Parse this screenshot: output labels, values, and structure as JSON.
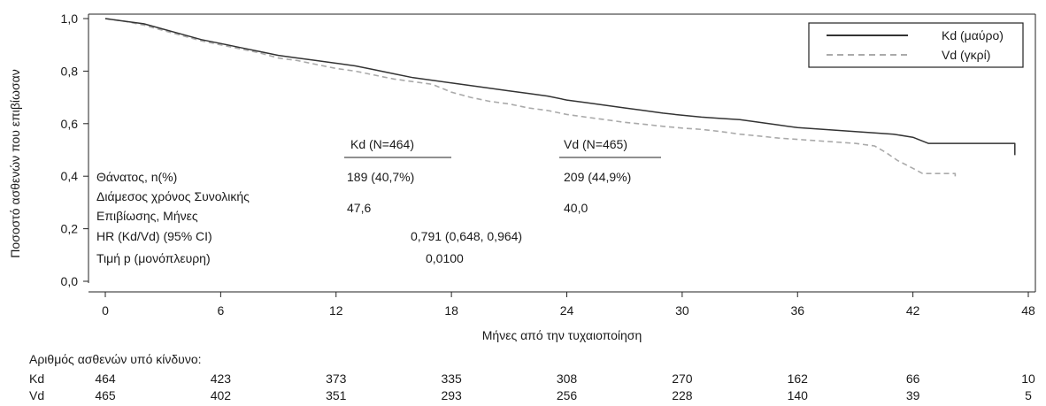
{
  "chart_data": {
    "type": "line",
    "subtype": "kaplan-meier",
    "title": "",
    "xlabel": "Μήνες από την τυχαιοποίηση",
    "ylabel": "Ποσοστό ασθενών που επιβίωσαν",
    "xlim": [
      0,
      48
    ],
    "ylim": [
      0,
      1.0
    ],
    "x_ticks": [
      0,
      6,
      12,
      18,
      24,
      30,
      36,
      42,
      48
    ],
    "y_ticks": [
      "0,0",
      "0,2",
      "0,4",
      "0,6",
      "0,8",
      "1,0"
    ],
    "grid": false,
    "legend": {
      "position": "top-right",
      "entries": [
        {
          "label": "Kd (μαύρο)",
          "color": "#333333",
          "style": "solid"
        },
        {
          "label": "Vd (γκρί)",
          "color": "#aaaaaa",
          "style": "dashed"
        }
      ]
    },
    "series": [
      {
        "name": "Kd (μαύρο)",
        "color": "#333333",
        "dash": "solid",
        "points": [
          [
            0,
            1.0
          ],
          [
            1,
            0.99
          ],
          [
            2,
            0.98
          ],
          [
            3,
            0.96
          ],
          [
            4,
            0.94
          ],
          [
            5,
            0.92
          ],
          [
            6,
            0.905
          ],
          [
            7,
            0.89
          ],
          [
            8,
            0.875
          ],
          [
            9,
            0.86
          ],
          [
            10,
            0.85
          ],
          [
            11,
            0.84
          ],
          [
            12,
            0.83
          ],
          [
            13,
            0.82
          ],
          [
            14,
            0.805
          ],
          [
            15,
            0.79
          ],
          [
            16,
            0.775
          ],
          [
            17,
            0.765
          ],
          [
            18,
            0.755
          ],
          [
            19,
            0.745
          ],
          [
            20,
            0.735
          ],
          [
            21,
            0.725
          ],
          [
            22,
            0.715
          ],
          [
            23,
            0.705
          ],
          [
            24,
            0.69
          ],
          [
            25,
            0.68
          ],
          [
            26,
            0.67
          ],
          [
            27,
            0.66
          ],
          [
            28,
            0.65
          ],
          [
            29,
            0.64
          ],
          [
            30,
            0.632
          ],
          [
            31,
            0.625
          ],
          [
            32,
            0.62
          ],
          [
            33,
            0.615
          ],
          [
            34,
            0.605
          ],
          [
            35,
            0.595
          ],
          [
            36,
            0.585
          ],
          [
            37,
            0.58
          ],
          [
            38,
            0.575
          ],
          [
            39,
            0.57
          ],
          [
            40,
            0.565
          ],
          [
            41,
            0.56
          ],
          [
            42,
            0.548
          ],
          [
            42.8,
            0.525
          ],
          [
            47.3,
            0.525
          ],
          [
            47.3,
            0.48
          ]
        ]
      },
      {
        "name": "Vd (γκρί)",
        "color": "#aaaaaa",
        "dash": "dashed",
        "points": [
          [
            0,
            1.0
          ],
          [
            1,
            0.99
          ],
          [
            2,
            0.975
          ],
          [
            3,
            0.955
          ],
          [
            4,
            0.935
          ],
          [
            5,
            0.915
          ],
          [
            6,
            0.9
          ],
          [
            7,
            0.885
          ],
          [
            8,
            0.87
          ],
          [
            9,
            0.85
          ],
          [
            10,
            0.84
          ],
          [
            11,
            0.825
          ],
          [
            12,
            0.81
          ],
          [
            13,
            0.8
          ],
          [
            14,
            0.785
          ],
          [
            15,
            0.77
          ],
          [
            16,
            0.76
          ],
          [
            17,
            0.75
          ],
          [
            18,
            0.72
          ],
          [
            19,
            0.7
          ],
          [
            20,
            0.685
          ],
          [
            21,
            0.675
          ],
          [
            22,
            0.66
          ],
          [
            23,
            0.65
          ],
          [
            24,
            0.635
          ],
          [
            25,
            0.625
          ],
          [
            26,
            0.615
          ],
          [
            27,
            0.605
          ],
          [
            28,
            0.598
          ],
          [
            29,
            0.59
          ],
          [
            30,
            0.583
          ],
          [
            31,
            0.578
          ],
          [
            32,
            0.57
          ],
          [
            33,
            0.56
          ],
          [
            34,
            0.553
          ],
          [
            35,
            0.545
          ],
          [
            36,
            0.54
          ],
          [
            37,
            0.535
          ],
          [
            38,
            0.53
          ],
          [
            39,
            0.525
          ],
          [
            40,
            0.515
          ],
          [
            40.6,
            0.49
          ],
          [
            41.2,
            0.46
          ],
          [
            42,
            0.43
          ],
          [
            42.5,
            0.41
          ],
          [
            44.2,
            0.41
          ],
          [
            44.2,
            0.39
          ]
        ]
      }
    ],
    "summary_table": {
      "headers": [
        "Kd (N=464)",
        "Vd (N=465)"
      ],
      "rows": [
        {
          "label": "Θάνατος, n(%)",
          "kd": "189 (40,7%)",
          "vd": "209 (44,9%)"
        },
        {
          "label_line1": "Διάμεσος χρόνος Συνολικής",
          "label_line2": "Επιβίωσης, Μήνες",
          "kd": "47,6",
          "vd": "40,0"
        },
        {
          "label": "HR (Kd/Vd) (95% CI)",
          "value": "0,791 (0,648, 0,964)"
        },
        {
          "label": "Τιμή p (μονόπλευρη)",
          "value": "0,0100"
        }
      ]
    },
    "at_risk": {
      "title": "Αριθμός ασθενών υπό κίνδυνο:",
      "rows": [
        {
          "label": "Kd",
          "values": [
            "464",
            "423",
            "373",
            "335",
            "308",
            "270",
            "162",
            "66",
            "10"
          ]
        },
        {
          "label": "Vd",
          "values": [
            "465",
            "402",
            "351",
            "293",
            "256",
            "228",
            "140",
            "39",
            "5"
          ]
        }
      ]
    }
  }
}
